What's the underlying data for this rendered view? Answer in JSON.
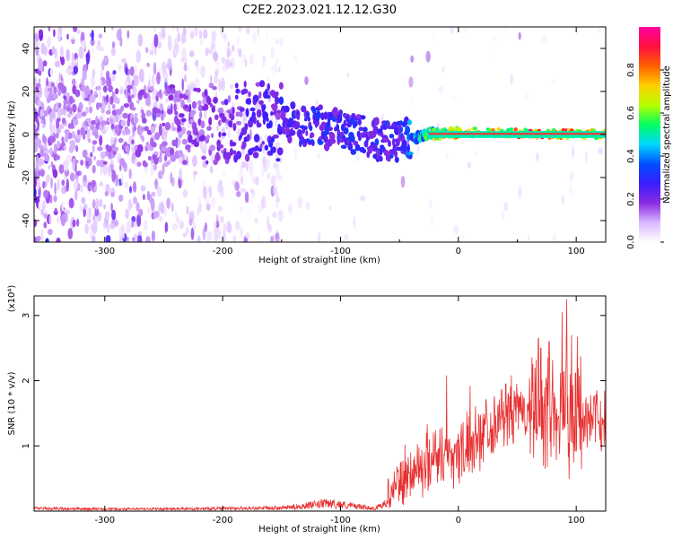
{
  "title": "C2E2.2023.021.12.12.G30",
  "chart_data": [
    {
      "type": "heatmap",
      "xlabel": "Height of straight line (km)",
      "ylabel": "Frequency (Hz)",
      "xlim": [
        -360,
        125
      ],
      "ylim": [
        -50,
        50
      ],
      "x_ticks": [
        -300,
        -200,
        -100,
        0,
        100
      ],
      "x_tick_labels": [
        "-300",
        "-200",
        "-100",
        "0",
        "100"
      ],
      "y_ticks": [
        -40,
        -20,
        0,
        20,
        40
      ],
      "y_tick_labels": [
        "-40",
        "-20",
        "0",
        "20",
        "40"
      ],
      "colorbar": {
        "label": "Normalized spectral amplitude",
        "range": [
          0,
          1
        ],
        "ticks": [
          0.0,
          0.2,
          0.4,
          0.6,
          0.8
        ],
        "tick_labels": [
          "0.0",
          "0.2",
          "0.4",
          "0.6",
          "0.8"
        ],
        "colors": [
          "#ffffff",
          "#d9b8ff",
          "#8a2be2",
          "#3a1cff",
          "#0050ff",
          "#00d8ff",
          "#00ff60",
          "#b8ff00",
          "#ffd000",
          "#ff6000",
          "#ff1040",
          "#ff00a0"
        ]
      },
      "ridge": [
        {
          "x": -360,
          "y": 5,
          "amp": 0.12
        },
        {
          "x": -300,
          "y": 4,
          "amp": 0.14
        },
        {
          "x": -250,
          "y": 4,
          "amp": 0.16
        },
        {
          "x": -200,
          "y": 5,
          "amp": 0.2
        },
        {
          "x": -170,
          "y": 6,
          "amp": 0.25
        },
        {
          "x": -140,
          "y": 5,
          "amp": 0.28
        },
        {
          "x": -120,
          "y": 4,
          "amp": 0.3
        },
        {
          "x": -100,
          "y": 2,
          "amp": 0.3
        },
        {
          "x": -80,
          "y": -1,
          "amp": 0.28
        },
        {
          "x": -65,
          "y": -3,
          "amp": 0.3
        },
        {
          "x": -50,
          "y": -3,
          "amp": 0.3
        },
        {
          "x": -40,
          "y": -2,
          "amp": 0.4
        },
        {
          "x": -25,
          "y": 0,
          "amp": 0.6
        },
        {
          "x": 0,
          "y": 1,
          "amp": 0.8
        },
        {
          "x": 50,
          "y": 0.5,
          "amp": 0.85
        },
        {
          "x": 125,
          "y": 0,
          "amp": 0.85
        }
      ]
    },
    {
      "type": "line",
      "xlabel": "Height of straight line (km)",
      "ylabel": "SNR (10 * v/v)",
      "y_scale_label": "(x10⁴)",
      "xlim": [
        -360,
        125
      ],
      "ylim": [
        0,
        3.3
      ],
      "x_ticks": [
        -300,
        -200,
        -100,
        0,
        100
      ],
      "x_tick_labels": [
        "-300",
        "-200",
        "-100",
        "0",
        "100"
      ],
      "y_ticks": [
        1,
        2,
        3
      ],
      "y_tick_labels": [
        "1",
        "2",
        "3"
      ],
      "color": "#e83030",
      "series_envelope": [
        {
          "x": -360,
          "y": 0.05
        },
        {
          "x": -300,
          "y": 0.04
        },
        {
          "x": -250,
          "y": 0.04
        },
        {
          "x": -200,
          "y": 0.05
        },
        {
          "x": -150,
          "y": 0.06
        },
        {
          "x": -130,
          "y": 0.1
        },
        {
          "x": -110,
          "y": 0.15
        },
        {
          "x": -90,
          "y": 0.1
        },
        {
          "x": -70,
          "y": 0.05
        },
        {
          "x": -60,
          "y": 0.2
        },
        {
          "x": -50,
          "y": 0.45
        },
        {
          "x": -40,
          "y": 0.6
        },
        {
          "x": -30,
          "y": 0.7
        },
        {
          "x": -20,
          "y": 0.9
        },
        {
          "x": -10,
          "y": 0.85
        },
        {
          "x": 0,
          "y": 0.9
        },
        {
          "x": 10,
          "y": 1.0
        },
        {
          "x": 20,
          "y": 1.25
        },
        {
          "x": 30,
          "y": 1.35
        },
        {
          "x": 40,
          "y": 1.5
        },
        {
          "x": 50,
          "y": 1.5
        },
        {
          "x": 60,
          "y": 1.55
        },
        {
          "x": 70,
          "y": 1.6
        },
        {
          "x": 80,
          "y": 1.5
        },
        {
          "x": 90,
          "y": 1.7
        },
        {
          "x": 100,
          "y": 1.5
        },
        {
          "x": 110,
          "y": 1.4
        },
        {
          "x": 125,
          "y": 1.4
        }
      ],
      "spikes": [
        {
          "x": -10,
          "y": 2.08
        },
        {
          "x": 10,
          "y": 1.92
        },
        {
          "x": 65,
          "y": 2.2
        },
        {
          "x": 70,
          "y": 2.5
        },
        {
          "x": 77,
          "y": 2.6
        },
        {
          "x": 88,
          "y": 3.05
        },
        {
          "x": 92,
          "y": 3.25
        },
        {
          "x": 96,
          "y": 2.7
        },
        {
          "x": 115,
          "y": 1.75
        }
      ]
    }
  ]
}
